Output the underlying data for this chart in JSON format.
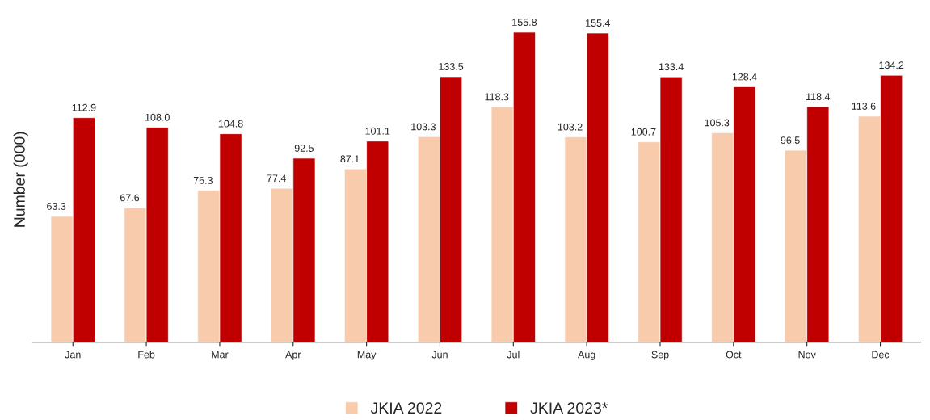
{
  "chart_data": {
    "type": "bar",
    "ylabel": "Number (000)",
    "categories": [
      "Jan",
      "Feb",
      "Mar",
      "Apr",
      "May",
      "Jun",
      "Jul",
      "Aug",
      "Sep",
      "Oct",
      "Nov",
      "Dec"
    ],
    "series": [
      {
        "name": "JKIA 2022",
        "color": "#f8cbad",
        "values": [
          63.3,
          67.6,
          76.3,
          77.4,
          87.1,
          103.3,
          118.3,
          103.2,
          100.7,
          105.3,
          96.5,
          113.6
        ],
        "value_labels": [
          "63.3",
          "67.6",
          "76.3",
          "77.4",
          "87.1",
          "103.3",
          "118.3",
          "103.2",
          "100.7",
          "105.3",
          "96.5",
          "113.6"
        ]
      },
      {
        "name": "JKIA 2023*",
        "color": "#c00000",
        "values": [
          112.9,
          108.0,
          104.8,
          92.5,
          101.1,
          133.5,
          155.8,
          155.4,
          133.4,
          128.4,
          118.4,
          134.2
        ],
        "value_labels": [
          "112.9",
          "108.0",
          "104.8",
          "92.5",
          "101.1",
          "133.5",
          "155.8",
          "155.4",
          "133.4",
          "128.4",
          "118.4",
          "134.2"
        ]
      }
    ],
    "legend": "bottom",
    "grid": false,
    "tick_labels": "x"
  }
}
